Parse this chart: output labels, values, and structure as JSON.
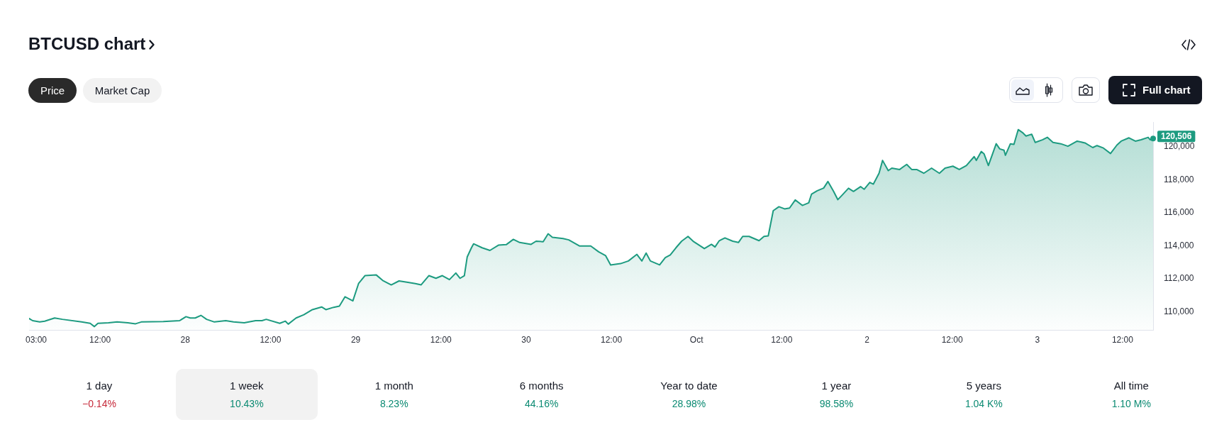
{
  "chart_data": [
    {
      "type": "area",
      "title": "BTCUSD chart",
      "annotations": [
        "Price",
        "Market Cap",
        "Full chart",
        {
          "text": "120,506",
          "x": "--10-03T16:18",
          "y": 120506
        }
      ],
      "color": "#1d9b80",
      "x": [
        "--09-27T02:00",
        "--09-27T02:30",
        "--09-27T03:30",
        "--09-27T04:12",
        "--09-27T05:36",
        "--09-27T06:42",
        "--09-27T09:24",
        "--09-27T10:36",
        "--09-27T11:12",
        "--09-27T11:42",
        "--09-27T13:12",
        "--09-27T14:24",
        "--09-27T15:54",
        "--09-27T17:00",
        "--09-27T17:48",
        "--09-27T20:54",
        "--09-27T23:12",
        "--09-28T00:06",
        "--09-28T00:42",
        "--09-28T01:24",
        "--09-28T02:12",
        "--09-28T03:00",
        "--09-28T04:06",
        "--09-28T05:42",
        "--09-28T06:48",
        "--09-28T08:18",
        "--09-28T09:54",
        "--09-28T10:48",
        "--09-28T11:24",
        "--09-28T13:18",
        "--09-28T14:06",
        "--09-28T14:30",
        "--09-28T15:36",
        "--09-28T16:42",
        "--09-28T17:54",
        "--09-28T19:12",
        "--09-28T19:48",
        "--09-28T20:54",
        "--09-28T21:42",
        "--09-28T22:30",
        "--09-28T23:36",
        "--09-29T00:24",
        "--09-29T01:18",
        "--09-29T02:54",
        "--09-29T03:48",
        "--09-29T05:00",
        "--09-29T06:06",
        "--09-29T07:12",
        "--09-29T08:24",
        "--09-29T09:12",
        "--09-29T10:18",
        "--09-29T11:18",
        "--09-29T12:12",
        "--09-29T13:12",
        "--09-29T14:06",
        "--09-29T14:42",
        "--09-29T15:18",
        "--09-29T15:42",
        "--09-29T16:18",
        "--09-29T16:36",
        "--09-29T17:48",
        "--09-29T18:54",
        "--09-29T20:06",
        "--09-29T21:12",
        "--09-29T22:12",
        "--09-29T23:06",
        "--09-30T00:42",
        "--09-30T01:24",
        "--09-30T02:24",
        "--09-30T03:06",
        "--09-30T03:42",
        "--09-30T05:12",
        "--09-30T06:00",
        "--09-30T07:30",
        "--09-30T09:06",
        "--09-30T10:12",
        "--09-30T11:12",
        "--09-30T11:54",
        "--09-30T13:18",
        "--09-30T14:24",
        "--09-30T15:36",
        "--09-30T16:18",
        "--09-30T16:54",
        "--09-30T17:30",
        "--09-30T18:48",
        "--09-30T19:36",
        "--09-30T20:18",
        "--09-30T21:06",
        "--09-30T21:54",
        "--09-30T22:48",
        "--09-30T23:36",
        "--10-01T01:06",
        "--10-01T02:06",
        "--10-01T02:36",
        "--10-01T03:12",
        "--10-01T04:00",
        "--10-01T05:06",
        "--10-01T05:54",
        "--10-01T06:30",
        "--10-01T07:24",
        "--10-01T08:48",
        "--10-01T09:30",
        "--10-01T10:06",
        "--10-01T10:48",
        "--10-01T11:36",
        "--10-01T12:24",
        "--10-01T13:06",
        "--10-01T13:54",
        "--10-01T14:54",
        "--10-01T15:48",
        "--10-01T16:12",
        "--10-01T17:00",
        "--10-01T17:54",
        "--10-01T18:30",
        "--10-01T19:18",
        "--10-01T19:54",
        "--10-01T20:30",
        "--10-01T21:24",
        "--10-01T22:06",
        "--10-01T23:06",
        "--10-01T23:36",
        "--10-02T00:24",
        "--10-02T00:54",
        "--10-02T01:42",
        "--10-02T02:12",
        "--10-02T03:00",
        "--10-02T03:30",
        "--10-02T04:36",
        "--10-02T05:36",
        "--10-02T06:18",
        "--10-02T07:00",
        "--10-02T08:00",
        "--10-02T09:06",
        "--10-02T10:12",
        "--10-02T11:00",
        "--10-02T12:06",
        "--10-02T13:00",
        "--10-02T14:00",
        "--10-02T15:06",
        "--10-02T15:24",
        "--10-02T16:06",
        "--10-02T16:30",
        "--10-02T17:06",
        "--10-02T18:12",
        "--10-02T18:42",
        "--10-02T19:18",
        "--10-02T19:30",
        "--10-02T20:12",
        "--10-02T20:42",
        "--10-02T21:18",
        "--10-02T21:54",
        "--10-02T22:24",
        "--10-02T23:12",
        "--10-02T23:42",
        "--10-03T00:42",
        "--10-03T01:24",
        "--10-03T02:12",
        "--10-03T03:18",
        "--10-03T04:18",
        "--10-03T05:36",
        "--10-03T06:42",
        "--10-03T07:48",
        "--10-03T08:24",
        "--10-03T09:18",
        "--10-03T10:18",
        "--10-03T11:12",
        "--10-03T11:48",
        "--10-03T12:54",
        "--10-03T13:48",
        "--10-03T14:36",
        "--10-03T15:36",
        "--10-03T15:54",
        "--10-03T16:18"
      ],
      "values": [
        109590,
        109460,
        109380,
        109430,
        109620,
        109540,
        109380,
        109300,
        109100,
        109300,
        109330,
        109380,
        109330,
        109270,
        109380,
        109410,
        109460,
        109700,
        109620,
        109620,
        109780,
        109540,
        109380,
        109460,
        109380,
        109330,
        109460,
        109460,
        109540,
        109300,
        109430,
        109250,
        109620,
        109820,
        110130,
        110290,
        110130,
        110270,
        110340,
        110910,
        110660,
        111710,
        112190,
        112230,
        111900,
        111630,
        111870,
        111790,
        111710,
        111630,
        112190,
        112030,
        112190,
        111950,
        112350,
        112030,
        112190,
        113320,
        113880,
        114120,
        113880,
        113720,
        114040,
        114070,
        114390,
        114200,
        114090,
        114280,
        114250,
        114730,
        114520,
        114440,
        114360,
        113990,
        113990,
        113640,
        113400,
        112840,
        112920,
        113080,
        113480,
        113080,
        113560,
        113080,
        112840,
        113280,
        113450,
        113880,
        114280,
        114570,
        114250,
        113830,
        114090,
        113930,
        114310,
        114480,
        114280,
        114200,
        114570,
        114570,
        114310,
        114570,
        114600,
        116130,
        116370,
        116240,
        116290,
        116780,
        116450,
        116610,
        117140,
        117340,
        117500,
        117900,
        117300,
        116800,
        117070,
        117490,
        117300,
        117590,
        117430,
        117850,
        117740,
        118400,
        119180,
        118560,
        118710,
        118630,
        118940,
        118630,
        118630,
        118400,
        118710,
        118400,
        118710,
        118830,
        118630,
        118870,
        119410,
        119180,
        119720,
        119570,
        118870,
        120190,
        119880,
        119800,
        119490,
        120190,
        120150,
        121050,
        120870,
        120660,
        120770,
        120270,
        120430,
        120580,
        120270,
        120190,
        120040,
        120350,
        120240,
        119960,
        120080,
        119930,
        119600,
        120110,
        120350,
        120550,
        120350,
        120430,
        120580,
        120430,
        120506
      ],
      "xlim": [
        "--09-27T02:00",
        "--10-03T16:18"
      ],
      "xticks": [
        {
          "value": "--09-27T03:00",
          "label": "03:00"
        },
        {
          "value": "--09-27T12:00",
          "label": "12:00"
        },
        {
          "value": "--09-28",
          "label": "28"
        },
        {
          "value": "--09-28T12:00",
          "label": "12:00"
        },
        {
          "value": "--09-29",
          "label": "29"
        },
        {
          "value": "--09-29T12:00",
          "label": "12:00"
        },
        {
          "value": "--09-30",
          "label": "30"
        },
        {
          "value": "--09-30T12:00",
          "label": "12:00"
        },
        {
          "value": "--10-01",
          "label": "Oct"
        },
        {
          "value": "--10-01T12:00",
          "label": "12:00"
        },
        {
          "value": "--10-02",
          "label": "2"
        },
        {
          "value": "--10-02T12:00",
          "label": "12:00"
        },
        {
          "value": "--10-03",
          "label": "3"
        },
        {
          "value": "--10-03T12:00",
          "label": "12:00"
        }
      ],
      "ylim": [
        108900,
        121500
      ],
      "yticks": [
        {
          "value": 110000,
          "label": "110,000"
        },
        {
          "value": 112000,
          "label": "112,000"
        },
        {
          "value": 114000,
          "label": "114,000"
        },
        {
          "value": 116000,
          "label": "116,000"
        },
        {
          "value": 118000,
          "label": "118,000"
        },
        {
          "value": 120000,
          "label": "120,000"
        }
      ]
    },
    {
      "type": "other",
      "categories": [
        "1 day",
        "1 week",
        "1 month",
        "6 months",
        "Year to date",
        "1 year",
        "5 years",
        "All time"
      ],
      "value_labels": [
        "−0.14%",
        "10.43%",
        "8.23%",
        "44.16%",
        "28.98%",
        "98.58%",
        "1.04 K%",
        "1.10 M%"
      ],
      "colors": [
        "#c62a3a",
        "#0b8a72",
        "#0b8a72",
        "#0b8a72",
        "#0b8a72",
        "#0b8a72",
        "#0b8a72",
        "#0b8a72"
      ]
    }
  ]
}
